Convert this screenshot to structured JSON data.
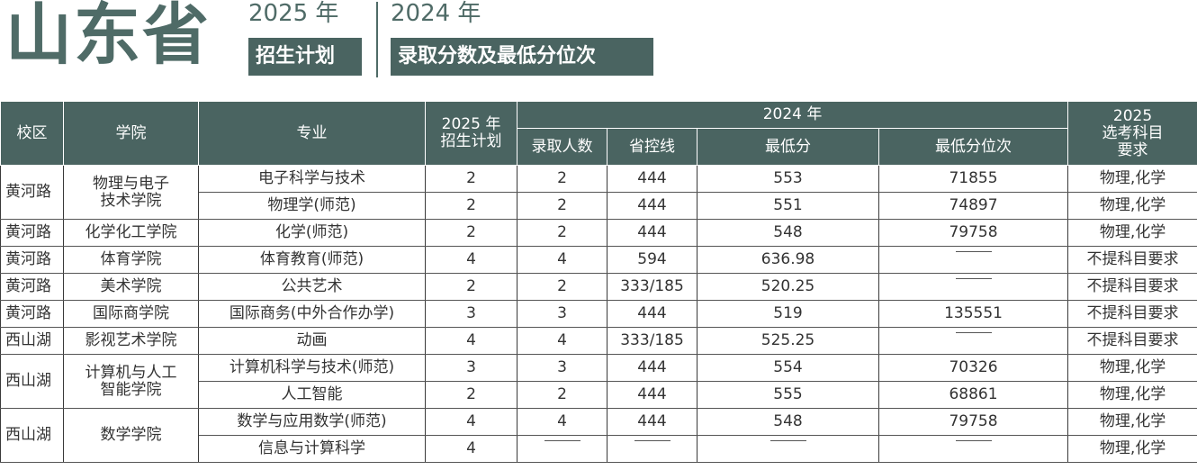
{
  "header": {
    "province": "山东省",
    "year_plan": "2025 年",
    "year_admit": "2024 年",
    "tag_plan": "招生计划",
    "tag_admit": "录取分数及最低分位次"
  },
  "table": {
    "col_campus": "校区",
    "col_college": "学院",
    "col_major": "专业",
    "col_plan": "2025 年\n招生计划",
    "group_2024": "2024 年",
    "col_admitted": "录取人数",
    "col_control": "省控线",
    "col_min_score": "最低分",
    "col_min_rank": "最低分位次",
    "col_require": "2025\n选考科目\n要求",
    "rows": [
      {
        "campus": "黄河路",
        "college": "物理与电子\n技术学院",
        "major": "电子科学与技术",
        "plan": "2",
        "admitted": "2",
        "control": "444",
        "min_score": "553",
        "min_rank": "71855",
        "require": "物理,化学"
      },
      {
        "campus": "",
        "college": "",
        "major": "物理学(师范)",
        "plan": "2",
        "admitted": "2",
        "control": "444",
        "min_score": "551",
        "min_rank": "74897",
        "require": "物理,化学"
      },
      {
        "campus": "黄河路",
        "college": "化学化工学院",
        "major": "化学(师范)",
        "plan": "2",
        "admitted": "2",
        "control": "444",
        "min_score": "548",
        "min_rank": "79758",
        "require": "物理,化学"
      },
      {
        "campus": "黄河路",
        "college": "体育学院",
        "major": "体育教育(师范)",
        "plan": "4",
        "admitted": "4",
        "control": "594",
        "min_score": "636.98",
        "min_rank": "—",
        "require": "不提科目要求"
      },
      {
        "campus": "黄河路",
        "college": "美术学院",
        "major": "公共艺术",
        "plan": "2",
        "admitted": "2",
        "control": "333/185",
        "min_score": "520.25",
        "min_rank": "—",
        "require": "不提科目要求"
      },
      {
        "campus": "黄河路",
        "college": "国际商学院",
        "major": "国际商务(中外合作办学)",
        "plan": "3",
        "admitted": "3",
        "control": "444",
        "min_score": "519",
        "min_rank": "135551",
        "require": "不提科目要求"
      },
      {
        "campus": "西山湖",
        "college": "影视艺术学院",
        "major": "动画",
        "plan": "4",
        "admitted": "4",
        "control": "333/185",
        "min_score": "525.25",
        "min_rank": "—",
        "require": "不提科目要求"
      },
      {
        "campus": "西山湖",
        "college": "计算机与人工\n智能学院",
        "major": "计算机科学与技术(师范)",
        "plan": "3",
        "admitted": "3",
        "control": "444",
        "min_score": "554",
        "min_rank": "70326",
        "require": "物理,化学"
      },
      {
        "campus": "",
        "college": "",
        "major": "人工智能",
        "plan": "2",
        "admitted": "2",
        "control": "444",
        "min_score": "555",
        "min_rank": "68861",
        "require": "物理,化学"
      },
      {
        "campus": "西山湖",
        "college": "数学学院",
        "major": "数学与应用数学(师范)",
        "plan": "4",
        "admitted": "4",
        "control": "444",
        "min_score": "548",
        "min_rank": "79758",
        "require": "物理,化学"
      },
      {
        "campus": "",
        "college": "",
        "major": "信息与计算科学",
        "plan": "4",
        "admitted": "—",
        "control": "—",
        "min_score": "—",
        "min_rank": "—",
        "require": "物理,化学"
      }
    ]
  }
}
